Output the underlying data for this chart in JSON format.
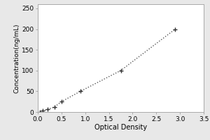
{
  "xlabel": "Optical Density",
  "ylabel": "Concentration(ng/mL)",
  "x_data": [
    0.05,
    0.1,
    0.2,
    0.35,
    0.5,
    0.9,
    1.75,
    2.9
  ],
  "y_data": [
    0,
    3,
    6,
    12,
    25,
    50,
    100,
    200
  ],
  "xlim": [
    0,
    3.5
  ],
  "ylim": [
    0,
    260
  ],
  "xticks": [
    0,
    0.5,
    1,
    1.5,
    2,
    2.5,
    3,
    3.5
  ],
  "yticks": [
    0,
    50,
    100,
    150,
    200,
    250
  ],
  "marker": "+",
  "marker_color": "#333333",
  "line_color": "#555555",
  "marker_size": 5,
  "background_color": "#ffffff",
  "outer_background": "#e8e8e8",
  "xlabel_fontsize": 7,
  "ylabel_fontsize": 6.5,
  "tick_fontsize": 6.5,
  "linewidth": 1.0
}
